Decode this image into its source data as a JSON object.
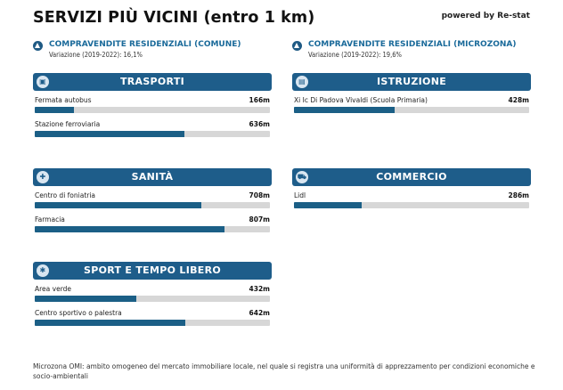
{
  "header": {
    "title": "SERVIZI PIÙ VICINI (entro 1 km)",
    "powered_by": "powered by Re-stat"
  },
  "kpis": [
    {
      "title": "COMPRAVENDITE RESIDENZIALI (COMUNE)",
      "subtitle": "Variazione (2019-2022): 16,1%",
      "icon": "triangle-up-icon"
    },
    {
      "title": "COMPRAVENDITE RESIDENZIALI (MICROZONA)",
      "subtitle": "Variazione (2019-2022): 19,6%",
      "icon": "triangle-up-icon"
    }
  ],
  "cards": {
    "trasporti": {
      "title": "TRASPORTI",
      "icon": "bus-icon",
      "items": [
        {
          "label": "Fermata autobus",
          "distance": "166m",
          "fill": 0.166
        },
        {
          "label": "Stazione ferroviaria",
          "distance": "636m",
          "fill": 0.636
        }
      ]
    },
    "istruzione": {
      "title": "ISTRUZIONE",
      "icon": "school-icon",
      "items": [
        {
          "label": "Xi Ic Di Padova Vivaldi (Scuola Primaria)",
          "distance": "428m",
          "fill": 0.428
        }
      ]
    },
    "sanita": {
      "title": "SANITÀ",
      "icon": "health-icon",
      "items": [
        {
          "label": "Centro di foniatria",
          "distance": "708m",
          "fill": 0.708
        },
        {
          "label": "Farmacia",
          "distance": "807m",
          "fill": 0.807
        }
      ]
    },
    "commercio": {
      "title": "COMMERCIO",
      "icon": "cart-icon",
      "items": [
        {
          "label": "Lidl",
          "distance": "286m",
          "fill": 0.286
        }
      ]
    },
    "sport": {
      "title": "SPORT E TEMPO LIBERO",
      "icon": "sport-icon",
      "items": [
        {
          "label": "Area verde",
          "distance": "432m",
          "fill": 0.432
        },
        {
          "label": "Centro sportivo o palestra",
          "distance": "642m",
          "fill": 0.642
        }
      ]
    }
  },
  "footer": {
    "note": "Microzona OMI: ambito omogeneo del mercato immobiliare locale, nel quale si registra una uniformità di apprezzamento per condizioni economiche e socio-ambientali"
  },
  "colors": {
    "accent": "#1e5d8a",
    "bar_fill": "#1b5f86",
    "bar_track": "#d7d7d7",
    "kpi_title": "#1a6a9a"
  }
}
